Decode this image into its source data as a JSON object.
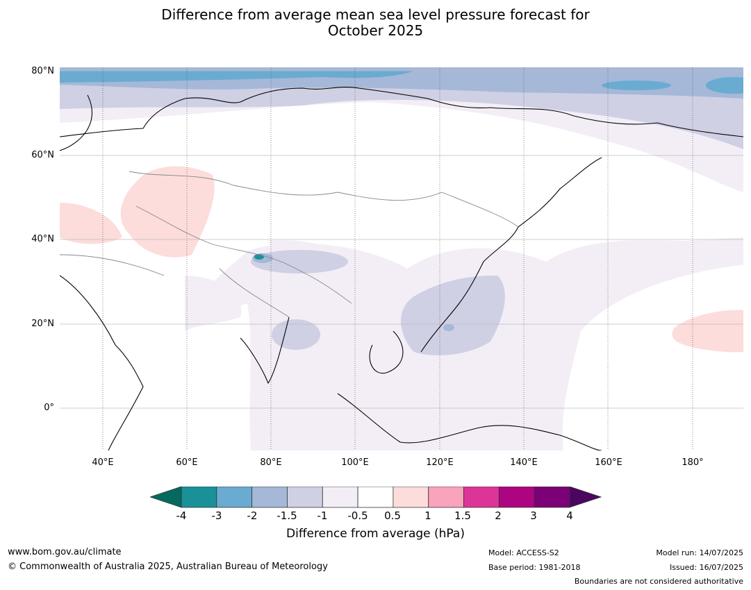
{
  "title_line1": "Difference from average mean sea level pressure forecast for",
  "title_line2": "October 2025",
  "lat_labels": [
    "80°N",
    "60°N",
    "40°N",
    "20°N",
    "0°"
  ],
  "lon_labels": [
    "40°E",
    "60°E",
    "80°E",
    "100°E",
    "120°E",
    "140°E",
    "160°E",
    "180°"
  ],
  "colorbar": {
    "ticks": [
      "-4",
      "-3",
      "-2",
      "-1.5",
      "-1",
      "-0.5",
      "0.5",
      "1",
      "1.5",
      "2",
      "3",
      "4"
    ],
    "colors": [
      "#1a9199",
      "#6aabd1",
      "#a5b8d8",
      "#cfd0e4",
      "#f3eef6",
      "#ffffff",
      "#fddcdc",
      "#f9a3bd",
      "#dc3597",
      "#ad0582",
      "#7c0177"
    ],
    "under_color": "#04695f",
    "over_color": "#4b0660",
    "label": "Difference from average (hPa)"
  },
  "footer": {
    "website": "www.bom.gov.au/climate",
    "copyright": "© Commonwealth of Australia 2025, Australian Bureau of Meteorology",
    "model": "Model: ACCESS-S2",
    "base_period": "Base period: 1981-2018",
    "model_run": "Model run: 14/07/2025",
    "issued": "Issued: 16/07/2025",
    "disclaimer": "Boundaries are not considered authoritative"
  }
}
